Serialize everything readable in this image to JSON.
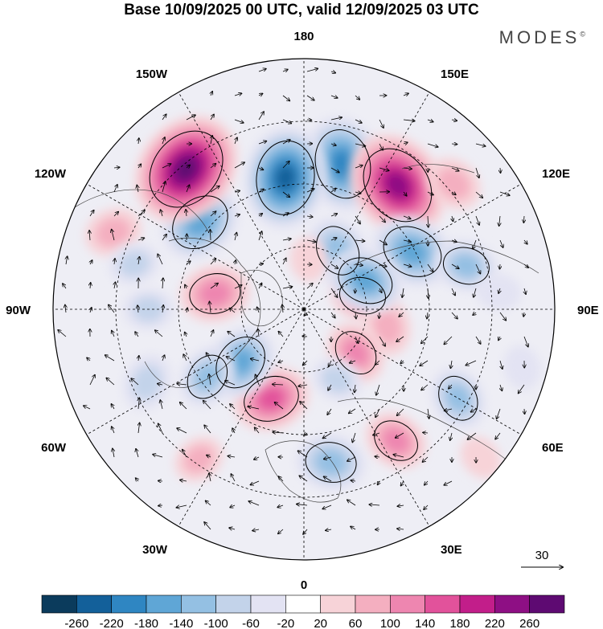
{
  "title": "Base 10/09/2025 00 UTC, valid 12/09/2025 03 UTC",
  "brand": {
    "name": "MODES",
    "mark": "©"
  },
  "longitude_labels": {
    "top": "180",
    "bottom": "0",
    "left": "90W",
    "right": "90E",
    "nw_upper": "150W",
    "nw_lower": "120W",
    "ne_upper": "150E",
    "ne_lower": "120E",
    "sw_upper": "60W",
    "sw_lower": "30W",
    "se_upper": "60E",
    "se_lower": "30E"
  },
  "vector_reference": {
    "label": "30"
  },
  "colorbar": {
    "colors": [
      "#0b3b5c",
      "#13609a",
      "#2f86c2",
      "#5fa6d6",
      "#94c0e3",
      "#c3d3ea",
      "#e3e3f3",
      "#ffffff",
      "#f7d3d8",
      "#f4afc0",
      "#ee86b0",
      "#e2529b",
      "#c21e8a",
      "#8e0f84",
      "#5e0a72"
    ],
    "ticks": [
      "-260",
      "-220",
      "-180",
      "-140",
      "-100",
      "-60",
      "-20",
      "20",
      "60",
      "100",
      "140",
      "180",
      "220",
      "260"
    ]
  },
  "anomaly_centers": [
    {
      "lon": 165,
      "r": 0.6,
      "value": -200
    },
    {
      "lon": 150,
      "r": 0.27,
      "value": -120
    },
    {
      "lon": 143,
      "r": 0.62,
      "value": 240
    },
    {
      "lon": 130,
      "r": 0.78,
      "value": 80
    },
    {
      "lon": 118,
      "r": 0.49,
      "value": -160
    },
    {
      "lon": 105,
      "r": 0.67,
      "value": -100
    },
    {
      "lon": 95,
      "r": 0.78,
      "value": -40
    },
    {
      "lon": 103,
      "r": 0.24,
      "value": 100
    },
    {
      "lon": 78,
      "r": 0.34,
      "value": 80
    },
    {
      "lon": 115,
      "r": 0.27,
      "value": -140
    },
    {
      "lon": 60,
      "r": 0.71,
      "value": -100
    },
    {
      "lon": 50,
      "r": 0.27,
      "value": 100
    },
    {
      "lon": 25,
      "r": 0.31,
      "value": -60
    },
    {
      "lon": 10,
      "r": 0.62,
      "value": -120
    },
    {
      "lon": 35,
      "r": 0.64,
      "value": 100
    },
    {
      "lon": -20,
      "r": 0.38,
      "value": 140
    },
    {
      "lon": -50,
      "r": 0.33,
      "value": -140
    },
    {
      "lon": -55,
      "r": 0.47,
      "value": -100
    },
    {
      "lon": -35,
      "r": 0.73,
      "value": 60
    },
    {
      "lon": -65,
      "r": 0.69,
      "value": -80
    },
    {
      "lon": -100,
      "r": 0.36,
      "value": 120
    },
    {
      "lon": -130,
      "r": 0.54,
      "value": -160
    },
    {
      "lon": -140,
      "r": 0.73,
      "value": 260
    },
    {
      "lon": -172,
      "r": 0.53,
      "value": -220
    },
    {
      "lon": -112,
      "r": 0.82,
      "value": 80
    },
    {
      "lon": -105,
      "r": 0.7,
      "value": -60
    },
    {
      "lon": 175,
      "r": 0.2,
      "value": 40
    },
    {
      "lon": -90,
      "r": 0.62,
      "value": -60
    },
    {
      "lon": 75,
      "r": 0.9,
      "value": -40
    },
    {
      "lon": 50,
      "r": 0.92,
      "value": 40
    }
  ]
}
